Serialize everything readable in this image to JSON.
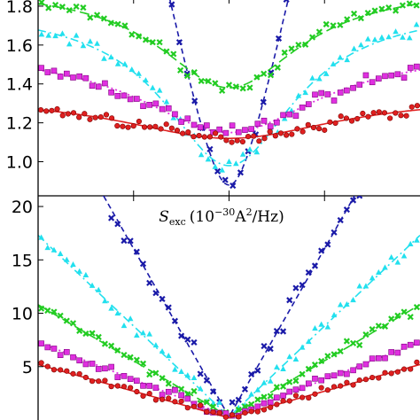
{
  "chart_data": [
    {
      "type": "scatter",
      "title": "",
      "xlabel": "",
      "ylabel": "",
      "xlim": [
        -1,
        1
      ],
      "ylim": [
        0.82,
        1.9
      ],
      "y_ticks": [
        1.0,
        1.2,
        1.4,
        1.6,
        1.8
      ],
      "y_tick_labels": [
        "1.0",
        "1.2",
        "1.4",
        "1.6",
        "1.8"
      ],
      "x_ticks": [
        -0.5,
        0.0,
        0.5
      ],
      "grid": false,
      "series": [
        {
          "color": "#1a1aa8",
          "marker": "x",
          "fit_style": "dashed",
          "model": {
            "kind": "vee",
            "floor": 0.88,
            "amp": 4.5,
            "w": 0.12
          },
          "noise": 0.03,
          "n": 50
        },
        {
          "color": "#22cc22",
          "marker": "x",
          "fit_style": "longdash",
          "model": {
            "kind": "lorentz",
            "base": 1.9,
            "depth": 0.52,
            "w": 0.45
          },
          "noise": 0.025,
          "n": 55
        },
        {
          "color": "#22e0ee",
          "marker": "triangle",
          "fit_style": "dashdot",
          "model": {
            "kind": "lorentz",
            "base": 1.8,
            "depth": 0.82,
            "w": 0.42
          },
          "noise": 0.035,
          "n": 55
        },
        {
          "color": "#e030e0",
          "marker": "square",
          "fit_style": "dotted",
          "model": {
            "kind": "lorentz",
            "base": 1.58,
            "depth": 0.43,
            "w": 0.58
          },
          "noise": 0.03,
          "n": 60
        },
        {
          "color": "#e02020",
          "marker": "circle",
          "fit_style": "solid",
          "model": {
            "kind": "lorentz",
            "base": 1.34,
            "depth": 0.22,
            "w": 0.7
          },
          "noise": 0.025,
          "n": 70
        }
      ],
      "annotations": []
    },
    {
      "type": "scatter",
      "title": "S_exc (10^-30 A^2/Hz)",
      "title_parts": {
        "symbol": "S",
        "sub": "exc",
        "prefix": "(10",
        "exp": "−30",
        "unit": "A",
        "unit_exp": "2",
        "suffix": "/Hz)"
      },
      "xlabel": "",
      "ylabel": "",
      "xlim": [
        -1,
        1
      ],
      "ylim": [
        0,
        21
      ],
      "y_ticks": [
        5,
        10,
        15,
        20
      ],
      "y_tick_labels": [
        "5",
        "10",
        "15",
        "20"
      ],
      "x_ticks": [
        -0.5,
        0.0,
        0.5
      ],
      "grid": false,
      "series": [
        {
          "color": "#1a1aa8",
          "marker": "x",
          "fit_style": "dashed",
          "slope": 31.5,
          "min": 0.3,
          "noise": 0.9,
          "n": 60
        },
        {
          "color": "#22e0ee",
          "marker": "triangle",
          "fit_style": "dashdot",
          "slope": 17,
          "min": 0.3,
          "noise": 0.6,
          "n": 60
        },
        {
          "color": "#22cc22",
          "marker": "x",
          "fit_style": "longdash",
          "slope": 10.5,
          "min": 0.3,
          "noise": 0.45,
          "n": 60
        },
        {
          "color": "#e030e0",
          "marker": "square",
          "fit_style": "dotted",
          "slope": 7,
          "min": 0.3,
          "noise": 0.35,
          "n": 60
        },
        {
          "color": "#e02020",
          "marker": "circle",
          "fit_style": "solid",
          "slope": 5,
          "min": 0.2,
          "noise": 0.3,
          "n": 60
        }
      ],
      "annotations": []
    }
  ]
}
